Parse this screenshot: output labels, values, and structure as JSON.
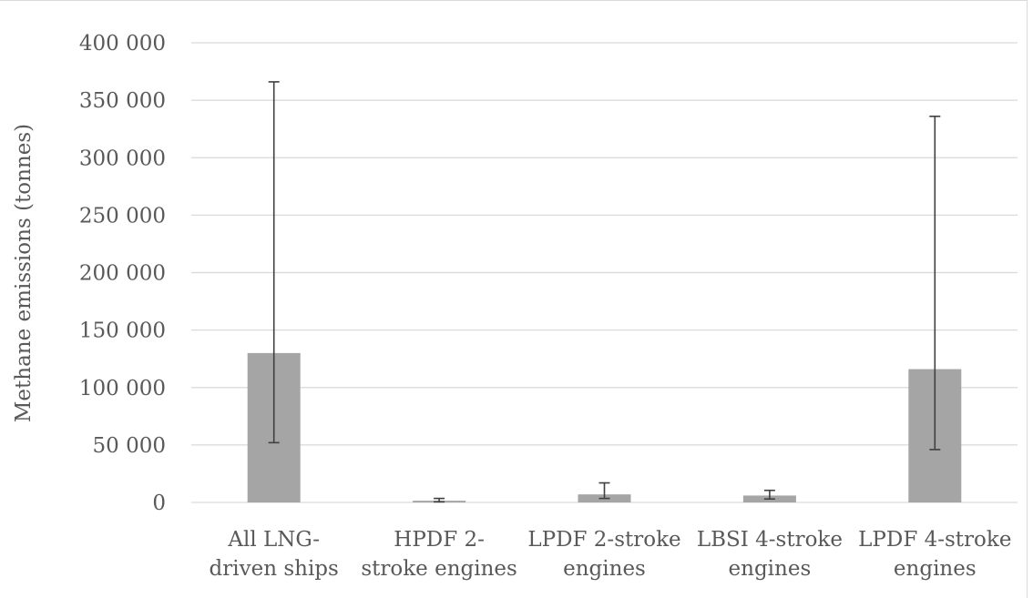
{
  "chart_data": {
    "type": "bar",
    "title": "",
    "xlabel": "",
    "ylabel": "Methane emissions (tonnes)",
    "ylim": [
      0,
      400000
    ],
    "yticks": [
      0,
      50000,
      100000,
      150000,
      200000,
      250000,
      300000,
      350000,
      400000
    ],
    "ytick_labels": [
      "0",
      "50 000",
      "100 000",
      "150 000",
      "200 000",
      "250 000",
      "300 000",
      "350 000",
      "400 000"
    ],
    "grid": true,
    "categories": [
      [
        "All LNG-",
        "driven ships"
      ],
      [
        "HPDF 2-",
        "stroke engines"
      ],
      [
        "LPDF 2-stroke",
        "engines"
      ],
      [
        "LBSI 4-stroke",
        "engines"
      ],
      [
        "LPDF 4-stroke",
        "engines"
      ]
    ],
    "values": [
      130000,
      1500,
      7000,
      6000,
      116000
    ],
    "error_low": [
      52000,
      500,
      3500,
      3000,
      46000
    ],
    "error_high": [
      366000,
      3500,
      17000,
      10500,
      336000
    ],
    "colors": {
      "bar": "#a5a5a5",
      "grid": "#d9d9d9",
      "error": "#404040",
      "text": "#595959"
    }
  }
}
